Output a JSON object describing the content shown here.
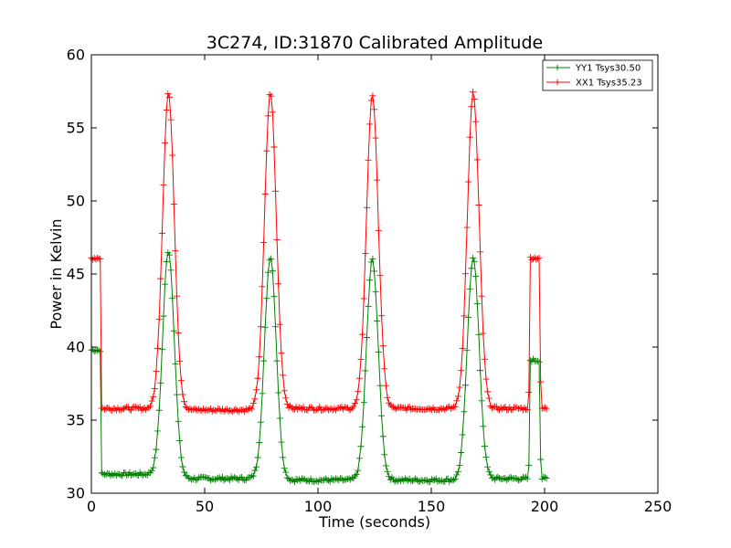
{
  "chart_data": {
    "type": "line",
    "title": "3C274, ID:31870 Calibrated Amplitude",
    "xlabel": "Time (seconds)",
    "ylabel": "Power in Kelvin",
    "xlim": [
      0,
      250
    ],
    "ylim": [
      30,
      60
    ],
    "xticks": [
      "0",
      "50",
      "100",
      "150",
      "200",
      "250"
    ],
    "yticks": [
      "30",
      "35",
      "40",
      "45",
      "50",
      "55",
      "60"
    ],
    "grid": false,
    "legend_position": "top-right",
    "series": [
      {
        "name": "YY1 Tsys30.50",
        "color": "#008000",
        "marker": "plus",
        "peaks": [
          {
            "center": 34,
            "peak": 46.6
          },
          {
            "center": 79,
            "peak": 46.2
          },
          {
            "center": 124,
            "peak": 46.0
          },
          {
            "center": 168.5,
            "peak": 46.2
          }
        ],
        "baseline_segments": [
          {
            "x0": 0,
            "x1": 4,
            "level": 39.8
          },
          {
            "x0": 4.3,
            "x1": 28,
            "level": 31.3
          },
          {
            "x0": 40,
            "x1": 73,
            "level": 31.0
          },
          {
            "x0": 84,
            "x1": 118,
            "level": 30.9
          },
          {
            "x0": 130,
            "x1": 162,
            "level": 30.9
          },
          {
            "x0": 175,
            "x1": 193,
            "level": 31.0
          },
          {
            "x0": 193.5,
            "x1": 198,
            "level": 39.1
          },
          {
            "x0": 198.3,
            "x1": 201,
            "level": 31.0
          }
        ]
      },
      {
        "name": "XX1 Tsys35.23",
        "color": "#ff0000",
        "marker": "plus",
        "peaks": [
          {
            "center": 34,
            "peak": 57.4
          },
          {
            "center": 79,
            "peak": 57.4
          },
          {
            "center": 124,
            "peak": 57.3
          },
          {
            "center": 168.5,
            "peak": 57.4
          }
        ],
        "baseline_segments": [
          {
            "x0": 0,
            "x1": 4,
            "level": 46.1
          },
          {
            "x0": 4.3,
            "x1": 28,
            "level": 35.8
          },
          {
            "x0": 40,
            "x1": 73,
            "level": 35.7
          },
          {
            "x0": 84,
            "x1": 118,
            "level": 35.8
          },
          {
            "x0": 130,
            "x1": 162,
            "level": 35.8
          },
          {
            "x0": 175,
            "x1": 193,
            "level": 35.8
          },
          {
            "x0": 193.5,
            "x1": 198,
            "level": 46.1
          },
          {
            "x0": 198.3,
            "x1": 201,
            "level": 35.8
          }
        ]
      }
    ]
  }
}
